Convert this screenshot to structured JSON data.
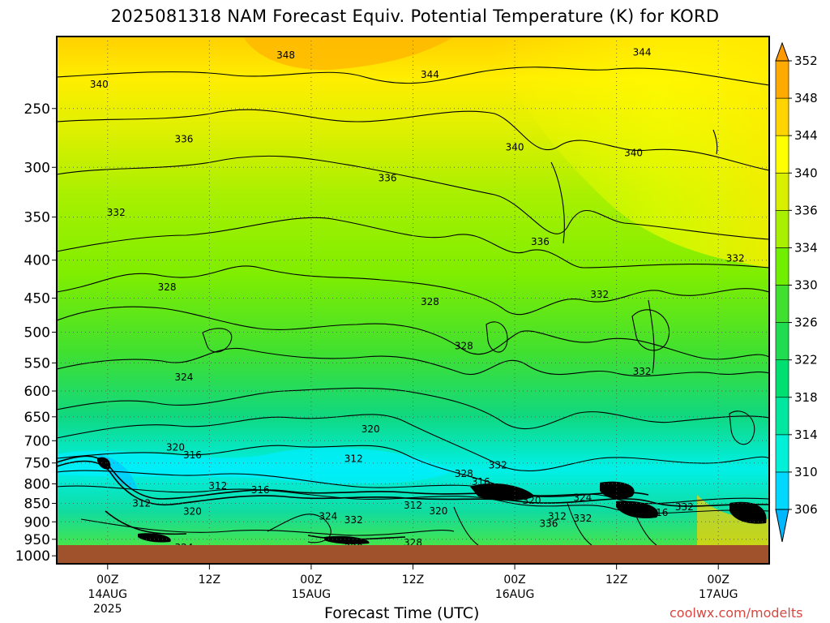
{
  "title": "2025081318 NAM Forecast Equiv. Potential Temperature (K) for KORD",
  "credit": "coolwx.com/modelts",
  "chart_data": {
    "type": "heatmap",
    "title": "2025081318 NAM Forecast Equiv. Potential Temperature (K) for KORD",
    "xlabel": "Forecast Time (UTC)",
    "ylabel": "",
    "y_scale": "log pressure (inverted)",
    "ylim": [
      1025,
      200
    ],
    "y_ticks": [
      250,
      300,
      350,
      400,
      450,
      500,
      550,
      600,
      650,
      700,
      750,
      800,
      850,
      900,
      950,
      1000
    ],
    "x_range_hours": [
      0,
      84
    ],
    "x_ticks": [
      {
        "hour": 6,
        "label": "00Z",
        "sub1": "14AUG",
        "sub2": "2025"
      },
      {
        "hour": 18,
        "label": "12Z",
        "sub1": "",
        "sub2": ""
      },
      {
        "hour": 30,
        "label": "00Z",
        "sub1": "15AUG",
        "sub2": ""
      },
      {
        "hour": 42,
        "label": "12Z",
        "sub1": "",
        "sub2": ""
      },
      {
        "hour": 54,
        "label": "00Z",
        "sub1": "16AUG",
        "sub2": ""
      },
      {
        "hour": 66,
        "label": "12Z",
        "sub1": "",
        "sub2": ""
      },
      {
        "hour": 78,
        "label": "00Z",
        "sub1": "17AUG",
        "sub2": ""
      }
    ],
    "colorbar": {
      "levels": [
        306,
        310,
        314,
        318,
        322,
        326,
        330,
        334,
        336,
        340,
        344,
        348,
        352
      ],
      "colors": [
        "#00d8ff",
        "#00f0d8",
        "#00e8a0",
        "#00e070",
        "#20dc50",
        "#40e030",
        "#70f000",
        "#a8f000",
        "#d8f000",
        "#ffff00",
        "#ffd400",
        "#ffaa00"
      ]
    },
    "contour_labels": [
      {
        "value": "348",
        "hour": 27,
        "p": 212
      },
      {
        "value": "344",
        "hour": 44,
        "p": 225
      },
      {
        "value": "344",
        "hour": 69,
        "p": 210
      },
      {
        "value": "340",
        "hour": 5,
        "p": 232
      },
      {
        "value": "340",
        "hour": 54,
        "p": 282
      },
      {
        "value": "340",
        "hour": 68,
        "p": 287
      },
      {
        "value": "336",
        "hour": 15,
        "p": 275
      },
      {
        "value": "336",
        "hour": 39,
        "p": 310
      },
      {
        "value": "336",
        "hour": 57,
        "p": 378
      },
      {
        "value": "332",
        "hour": 7,
        "p": 345
      },
      {
        "value": "332",
        "hour": 80,
        "p": 398
      },
      {
        "value": "332",
        "hour": 64,
        "p": 445
      },
      {
        "value": "332",
        "hour": 69,
        "p": 565
      },
      {
        "value": "328",
        "hour": 13,
        "p": 435
      },
      {
        "value": "328",
        "hour": 44,
        "p": 455
      },
      {
        "value": "328",
        "hour": 48,
        "p": 522
      },
      {
        "value": "324",
        "hour": 15,
        "p": 575
      },
      {
        "value": "324",
        "hour": 32,
        "p": 885
      },
      {
        "value": "324",
        "hour": 15,
        "p": 975
      },
      {
        "value": "320",
        "hour": 37,
        "p": 675
      },
      {
        "value": "320",
        "hour": 14,
        "p": 715
      },
      {
        "value": "320",
        "hour": 16,
        "p": 872
      },
      {
        "value": "320",
        "hour": 45,
        "p": 870
      },
      {
        "value": "320",
        "hour": 35,
        "p": 975
      },
      {
        "value": "320",
        "hour": 56,
        "p": 842
      },
      {
        "value": "316",
        "hour": 16,
        "p": 732
      },
      {
        "value": "316",
        "hour": 24,
        "p": 815
      },
      {
        "value": "316",
        "hour": 50,
        "p": 795
      },
      {
        "value": "316",
        "hour": 51,
        "p": 832
      },
      {
        "value": "316",
        "hour": 71,
        "p": 875
      },
      {
        "value": "312",
        "hour": 35,
        "p": 740
      },
      {
        "value": "312",
        "hour": 19,
        "p": 805
      },
      {
        "value": "312",
        "hour": 10,
        "p": 850
      },
      {
        "value": "312",
        "hour": 42,
        "p": 855
      },
      {
        "value": "312",
        "hour": 59,
        "p": 885
      },
      {
        "value": "328",
        "hour": 48,
        "p": 775
      },
      {
        "value": "328",
        "hour": 69,
        "p": 865
      },
      {
        "value": "328",
        "hour": 10,
        "p": 980
      },
      {
        "value": "328",
        "hour": 42,
        "p": 960
      },
      {
        "value": "332",
        "hour": 35,
        "p": 895
      },
      {
        "value": "332",
        "hour": 52,
        "p": 755
      },
      {
        "value": "332",
        "hour": 62,
        "p": 890
      },
      {
        "value": "332",
        "hour": 74,
        "p": 860
      },
      {
        "value": "324",
        "hour": 62,
        "p": 835
      },
      {
        "value": "336",
        "hour": 58,
        "p": 905
      }
    ]
  }
}
